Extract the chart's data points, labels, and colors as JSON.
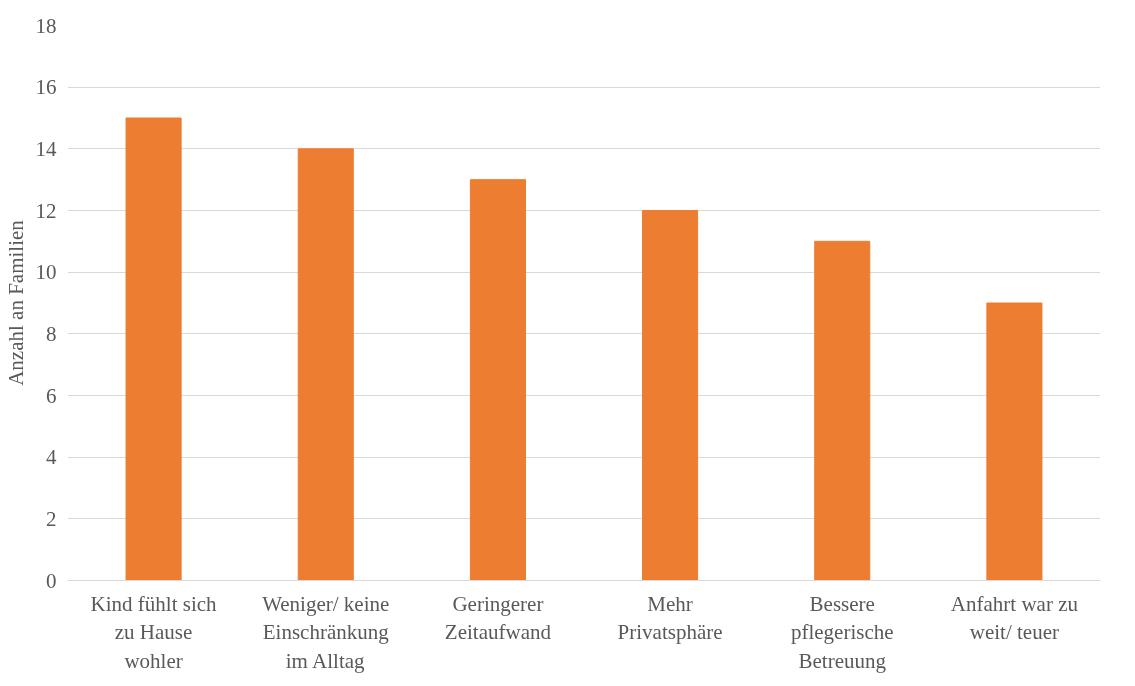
{
  "chart_data": {
    "type": "bar",
    "ylabel": "Anzahl an Familien",
    "categories": [
      "Kind fühlt sich\nzu Hause\nwohler",
      "Weniger/ keine\nEinschränkung\nim Alltag",
      "Geringerer\nZeitaufwand",
      "Mehr\nPrivatsphäre",
      "Bessere\npflegerische\nBetreuung",
      "Anfahrt war zu\nweit/ teuer"
    ],
    "values": [
      15,
      14,
      13,
      12,
      11,
      9
    ],
    "color": "#ed7d31",
    "ylim": [
      0,
      18
    ],
    "yticks": [
      0,
      2,
      4,
      6,
      8,
      10,
      12,
      14,
      16,
      18
    ],
    "grid": "y"
  }
}
